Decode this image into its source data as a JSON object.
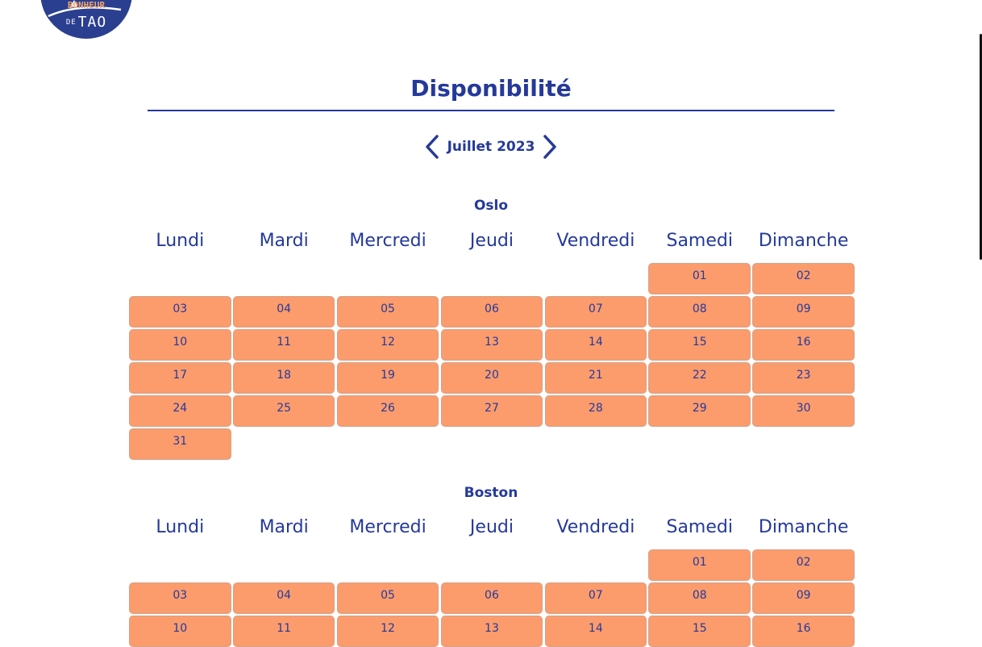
{
  "logo": {
    "top_text": "BONHEUR",
    "small_text": "DE",
    "main_text": "TAO"
  },
  "page_title": "Disponibilité",
  "month_nav": {
    "label": "Juillet 2023",
    "prev_icon": "chevron-left-icon",
    "next_icon": "chevron-right-icon"
  },
  "weekdays": [
    "Lundi",
    "Mardi",
    "Mercredi",
    "Jeudi",
    "Vendredi",
    "Samedi",
    "Dimanche"
  ],
  "colors": {
    "accent": "#25399a",
    "available": "#fc9c6c",
    "logo_bg": "#2a3f8f"
  },
  "calendars": [
    {
      "city": "Oslo",
      "offset": 5,
      "days": [
        "01",
        "02",
        "03",
        "04",
        "05",
        "06",
        "07",
        "08",
        "09",
        "10",
        "11",
        "12",
        "13",
        "14",
        "15",
        "16",
        "17",
        "18",
        "19",
        "20",
        "21",
        "22",
        "23",
        "24",
        "25",
        "26",
        "27",
        "28",
        "29",
        "30",
        "31"
      ]
    },
    {
      "city": "Boston",
      "offset": 5,
      "days": [
        "01",
        "02",
        "03",
        "04",
        "05",
        "06",
        "07",
        "08",
        "09",
        "10",
        "11",
        "12",
        "13",
        "14",
        "15",
        "16"
      ]
    }
  ]
}
